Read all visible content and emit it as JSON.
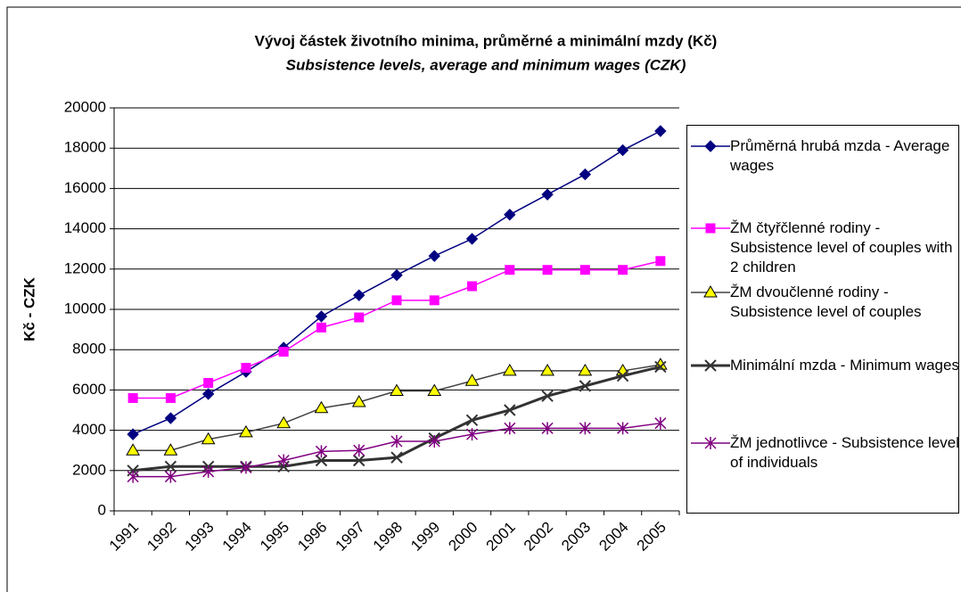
{
  "chart_data": {
    "type": "line",
    "title": "Vývoj částek životního minima, průměrné a minimální mzdy (Kč)",
    "subtitle": "Subsistence levels, average and minimum wages (CZK)",
    "y_label": "Kč - CZK",
    "categories": [
      "1991",
      "1992",
      "1993",
      "1994",
      "1995",
      "1996",
      "1997",
      "1998",
      "1999",
      "2000",
      "2001",
      "2002",
      "2003",
      "2004",
      "2005"
    ],
    "ylim": [
      0,
      20000
    ],
    "yticks": [
      0,
      2000,
      4000,
      6000,
      8000,
      10000,
      12000,
      14000,
      16000,
      18000,
      20000
    ],
    "grid": true,
    "legend": "right",
    "series": [
      {
        "name": "Průměrná hrubá mzda - Average wages",
        "color": "#000080",
        "marker": "diamond",
        "values": [
          3800,
          4600,
          5800,
          6900,
          8100,
          9650,
          10700,
          11700,
          12650,
          13500,
          14700,
          15700,
          16700,
          17900,
          18850
        ]
      },
      {
        "name": "ŽM čtyřčlenné rodiny - Subsistence level of couples with 2 children",
        "color": "#ff00ff",
        "marker": "square",
        "values": [
          5600,
          5600,
          6350,
          7100,
          7900,
          9100,
          9600,
          10450,
          10450,
          11150,
          11960,
          11960,
          11960,
          11960,
          12400
        ]
      },
      {
        "name": "ŽM dvoučlenné rodiny - Subsistence level of couples",
        "color": "#404040",
        "marker": "triangle",
        "values": [
          3000,
          3000,
          3550,
          3900,
          4350,
          5100,
          5400,
          5950,
          5950,
          6450,
          6950,
          6950,
          6950,
          6950,
          7250
        ]
      },
      {
        "name": "Minimální mzda - Minimum wages",
        "color": "#333333",
        "marker": "x",
        "values": [
          2000,
          2200,
          2200,
          2200,
          2200,
          2500,
          2500,
          2650,
          3600,
          4500,
          5000,
          5700,
          6200,
          6700,
          7150
        ]
      },
      {
        "name": "ŽM jednotlivce - Subsistence level of individuals",
        "color": "#800080",
        "marker": "star",
        "values": [
          1700,
          1700,
          1950,
          2150,
          2500,
          2950,
          3000,
          3450,
          3450,
          3800,
          4100,
          4100,
          4100,
          4100,
          4350
        ]
      }
    ]
  }
}
